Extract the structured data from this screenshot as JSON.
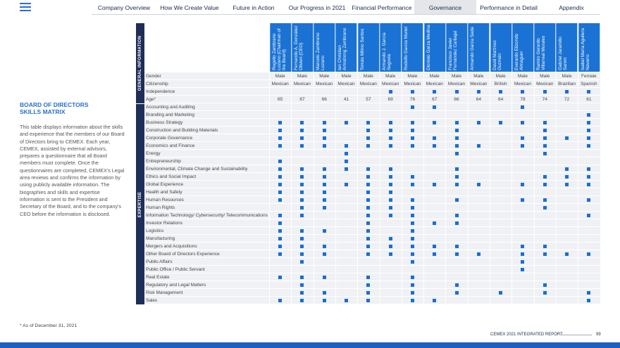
{
  "nav": {
    "items": [
      "Company Overview",
      "How We Create Value",
      "Future in Action",
      "Our Progress in 2021",
      "Financial Performance",
      "Governance",
      "Performance in Detail",
      "Appendix"
    ],
    "active_index": 5
  },
  "sidebar": {
    "title": "BOARD OF DIRECTORS SKILLS MATRIX",
    "body": "This table displays information about the skills and experience that the members of our Board of Directors bring to CEMEX. Each year, CEMEX, assisted by external advisors, prepares a questionnaire that all Board members must complete. Once the questionnaires are completed, CEMEX's Legal area reviews and confirms the information by using publicly available information. The biographies and skills and expertise information is sent to the President and Secretary of the Board, and to the company's CEO before the information is disclosed."
  },
  "table": {
    "section_labels": {
      "general": "GENERAL INFORMATION",
      "expertise": "EXPERTISE"
    },
    "directors": [
      "Rogelio Zambrano Lozano (Chairman of the Board)",
      "Fernando A. González Olivieri (CEO)",
      "Marcelo Zambrano Lozano",
      "Ian Christian Armstrong Zambrano",
      "Tomás Milmo Santos",
      "Armando J. García Segovia",
      "Rodolfo García Muriel",
      "Dionisio Garza Medina",
      "Francisco Javier Fernández Carbajal",
      "Armando Garza Sada",
      "David Martínez Guzmán",
      "Everardo Elizondo Almaguer",
      "Ramiro Gerardo Villarreal Morales",
      "Gabriel Jaramillo Sanint",
      "Isabel María Aguilera Navarro"
    ],
    "general": [
      {
        "label": "Gender",
        "values": [
          "Male",
          "Male",
          "Male",
          "Male",
          "Male",
          "Male",
          "Male",
          "Male",
          "Male",
          "Male",
          "Male",
          "Male",
          "Male",
          "Male",
          "Female"
        ]
      },
      {
        "label": "Citizenship",
        "values": [
          "Mexican",
          "Mexican",
          "Mexican",
          "Mexican",
          "Mexican",
          "Mexican",
          "Mexican",
          "Mexican",
          "Mexican",
          "Mexican",
          "British",
          "Mexican",
          "Mexican",
          "Brazilian",
          "Spanish"
        ]
      },
      {
        "label": "Independence",
        "marks": [
          0,
          0,
          0,
          0,
          0,
          1,
          1,
          1,
          1,
          1,
          1,
          1,
          1,
          1,
          1
        ]
      },
      {
        "label": "Age*",
        "values": [
          65,
          67,
          66,
          41,
          57,
          69,
          76,
          67,
          66,
          64,
          64,
          78,
          74,
          72,
          61
        ]
      }
    ],
    "expertise": [
      {
        "label": "Accounting and Auditing",
        "marks": [
          0,
          0,
          0,
          0,
          0,
          0,
          1,
          1,
          0,
          0,
          0,
          1,
          0,
          0,
          0
        ]
      },
      {
        "label": "Branding and Marketing",
        "marks": [
          0,
          0,
          0,
          0,
          0,
          0,
          0,
          0,
          0,
          0,
          0,
          0,
          0,
          0,
          1
        ]
      },
      {
        "label": "Business Strategy",
        "marks": [
          1,
          1,
          1,
          1,
          1,
          1,
          1,
          1,
          1,
          1,
          1,
          1,
          1,
          0,
          1
        ]
      },
      {
        "label": "Construction and Building Materials",
        "marks": [
          1,
          1,
          1,
          0,
          1,
          1,
          1,
          0,
          1,
          0,
          0,
          0,
          1,
          0,
          1
        ]
      },
      {
        "label": "Corporate Governance",
        "marks": [
          1,
          1,
          1,
          0,
          1,
          1,
          1,
          1,
          1,
          0,
          0,
          1,
          1,
          1,
          1
        ]
      },
      {
        "label": "Economics and Finance",
        "marks": [
          1,
          1,
          1,
          1,
          1,
          1,
          1,
          1,
          1,
          1,
          0,
          1,
          1,
          0,
          1
        ]
      },
      {
        "label": "Energy",
        "marks": [
          0,
          0,
          0,
          1,
          0,
          0,
          0,
          0,
          1,
          0,
          0,
          0,
          1,
          0,
          0
        ]
      },
      {
        "label": "Entrepreneurship",
        "marks": [
          1,
          0,
          0,
          1,
          0,
          0,
          0,
          0,
          0,
          0,
          0,
          0,
          0,
          0,
          0
        ]
      },
      {
        "label": "Environmental, Climate Change and Sustainability",
        "marks": [
          1,
          1,
          1,
          1,
          1,
          1,
          0,
          0,
          1,
          0,
          0,
          0,
          0,
          1,
          1
        ]
      },
      {
        "label": "Ethics and Social Impact",
        "marks": [
          1,
          1,
          1,
          0,
          1,
          1,
          1,
          0,
          1,
          0,
          0,
          0,
          1,
          1,
          1
        ]
      },
      {
        "label": "Global Experience",
        "marks": [
          1,
          1,
          1,
          1,
          1,
          1,
          1,
          1,
          1,
          1,
          0,
          1,
          1,
          1,
          1
        ]
      },
      {
        "label": "Health and Safety",
        "marks": [
          1,
          1,
          1,
          0,
          1,
          1,
          0,
          0,
          0,
          0,
          0,
          0,
          0,
          0,
          0
        ]
      },
      {
        "label": "Human Resources",
        "marks": [
          1,
          1,
          1,
          0,
          1,
          1,
          1,
          0,
          1,
          0,
          0,
          1,
          1,
          0,
          1
        ]
      },
      {
        "label": "Human Rights",
        "marks": [
          0,
          1,
          1,
          0,
          1,
          1,
          1,
          0,
          0,
          0,
          0,
          0,
          1,
          0,
          0
        ]
      },
      {
        "label": "Information Technology/ Cybersecurity/ Telecommunications",
        "marks": [
          1,
          1,
          0,
          0,
          1,
          1,
          1,
          0,
          1,
          0,
          0,
          0,
          0,
          0,
          1
        ]
      },
      {
        "label": "Investor Relations",
        "marks": [
          1,
          0,
          0,
          0,
          1,
          0,
          1,
          1,
          1,
          0,
          0,
          0,
          0,
          0,
          0
        ]
      },
      {
        "label": "Logistics",
        "marks": [
          1,
          1,
          1,
          0,
          1,
          0,
          1,
          0,
          0,
          0,
          0,
          0,
          0,
          0,
          0
        ]
      },
      {
        "label": "Manufacturing",
        "marks": [
          1,
          1,
          0,
          0,
          1,
          1,
          1,
          0,
          0,
          0,
          0,
          0,
          0,
          0,
          0
        ]
      },
      {
        "label": "Mergers and Acquisitions",
        "marks": [
          1,
          1,
          1,
          0,
          1,
          1,
          1,
          1,
          1,
          0,
          0,
          1,
          1,
          0,
          0
        ]
      },
      {
        "label": "Other Board of Directors Experience",
        "marks": [
          1,
          1,
          1,
          0,
          1,
          1,
          1,
          1,
          1,
          1,
          0,
          1,
          1,
          1,
          1
        ]
      },
      {
        "label": "Public Affairs",
        "marks": [
          0,
          1,
          0,
          0,
          0,
          0,
          1,
          0,
          0,
          0,
          0,
          1,
          0,
          0,
          0
        ]
      },
      {
        "label": "Public Office / Public Servant",
        "marks": [
          0,
          0,
          0,
          0,
          0,
          0,
          0,
          0,
          0,
          0,
          0,
          1,
          0,
          0,
          0
        ]
      },
      {
        "label": "Real Estate",
        "marks": [
          1,
          1,
          1,
          0,
          1,
          0,
          1,
          0,
          0,
          0,
          0,
          0,
          0,
          0,
          0
        ]
      },
      {
        "label": "Regulatory and Legal Matters",
        "marks": [
          0,
          1,
          0,
          0,
          1,
          0,
          1,
          0,
          1,
          0,
          0,
          0,
          1,
          0,
          0
        ]
      },
      {
        "label": "Risk Management",
        "marks": [
          0,
          1,
          1,
          0,
          1,
          0,
          1,
          0,
          1,
          0,
          1,
          0,
          1,
          0,
          1
        ]
      },
      {
        "label": "Sales",
        "marks": [
          1,
          1,
          1,
          1,
          1,
          0,
          1,
          1,
          0,
          0,
          0,
          0,
          0,
          0,
          1
        ]
      }
    ]
  },
  "footnote": "* As of December 31, 2021",
  "footer": {
    "report": "CEMEX 2021 INTEGRATED REPORT",
    "page": "99"
  }
}
